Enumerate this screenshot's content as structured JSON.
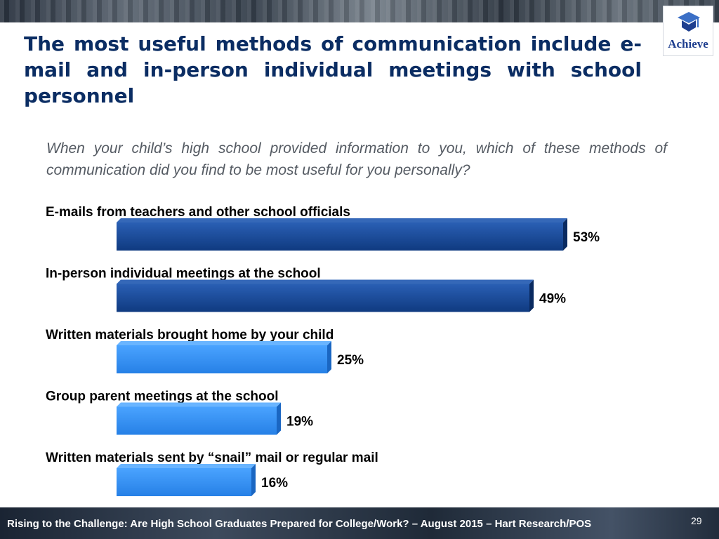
{
  "slide": {
    "title": "The most useful methods of communication include e-mail and in-person individual meetings with school personnel",
    "question": "When your child’s high school provided information to you, which of these methods of communication did you find to be most useful for you personally?",
    "logo_text": "Achieve",
    "footer": "Rising to the Challenge:  Are High School Graduates Prepared for College/Work? – August 2015 – Hart Research/POS",
    "page_number": "29"
  },
  "colors": {
    "title": "#0b2d63",
    "bar_dark": "#17489a",
    "bar_light": "#2f8ef5",
    "label": "#000000"
  },
  "chart_data": {
    "type": "bar",
    "orientation": "horizontal",
    "categories": [
      "E-mails from teachers and other school officials",
      "In-person individual meetings at the school",
      "Written materials brought home by your child",
      "Group parent meetings at the school",
      "Written materials sent by “snail” mail or regular mail"
    ],
    "values": [
      53,
      49,
      25,
      19,
      16
    ],
    "value_labels": [
      "53%",
      "49%",
      "25%",
      "19%",
      "16%"
    ],
    "highlight": [
      true,
      true,
      false,
      false,
      false
    ],
    "unit": "%",
    "xlim": [
      0,
      100
    ],
    "title": "",
    "xlabel": "",
    "ylabel": "",
    "grid": false,
    "legend": "none"
  }
}
